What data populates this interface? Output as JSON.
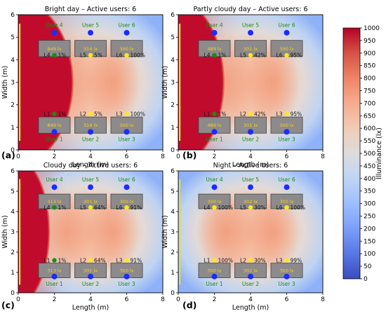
{
  "chart_data": {
    "type": "heatmap",
    "xlabel": "Length (m)",
    "ylabel": "Width (m)",
    "xlim": [
      0,
      8
    ],
    "ylim": [
      0,
      6
    ],
    "xticks": [
      0,
      2,
      4,
      6,
      8
    ],
    "yticks": [
      0,
      1,
      2,
      3,
      4,
      5,
      6
    ],
    "colorbar": {
      "label": "Illuminance (lx)",
      "range": [
        0,
        1000
      ],
      "ticks": [
        0,
        50,
        100,
        150,
        200,
        250,
        300,
        350,
        400,
        450,
        500,
        550,
        600,
        650,
        700,
        750,
        800,
        850,
        900,
        950,
        1000
      ],
      "colors": [
        "#3b4cc0",
        "#5977e3",
        "#7b9ff9",
        "#9ebeff",
        "#c0d4f5",
        "#dddcdc",
        "#f2cbb7",
        "#f7ac8e",
        "#ee8468",
        "#d65244",
        "#b40426"
      ]
    },
    "user_positions_m": [
      {
        "label": "User 1",
        "x": 2,
        "y": 0.8
      },
      {
        "label": "User 2",
        "x": 4,
        "y": 0.8
      },
      {
        "label": "User 3",
        "x": 6,
        "y": 0.8
      },
      {
        "label": "User 4",
        "x": 2,
        "y": 5.2
      },
      {
        "label": "User 5",
        "x": 4,
        "y": 5.2
      },
      {
        "label": "User 6",
        "x": 6,
        "y": 5.2
      }
    ],
    "panels": [
      {
        "tag": "(a)",
        "title": "Bright day – Active users: 6",
        "window_red_extent_m": 3.0,
        "luminaires": [
          {
            "label": "L1",
            "dim": "1%",
            "x": 2,
            "y": 1.6,
            "color": "#1a8a1a"
          },
          {
            "label": "L2",
            "dim": "5%",
            "x": 4,
            "y": 1.6,
            "color": "#ffe61a"
          },
          {
            "label": "L3",
            "dim": "100%",
            "x": 6,
            "y": 1.6,
            "color": "#ffe61a"
          },
          {
            "label": "L4",
            "dim": "1%",
            "x": 2,
            "y": 4.2,
            "color": "#1a8a1a"
          },
          {
            "label": "L5",
            "dim": "5%",
            "x": 4,
            "y": 4.2,
            "color": "#ffe61a"
          },
          {
            "label": "L6",
            "dim": "100%",
            "x": 6,
            "y": 4.2,
            "color": "#ffe61a"
          }
        ],
        "desks": [
          {
            "lux": "849 lx",
            "x": 2,
            "y": 1.1
          },
          {
            "lux": "314 lx",
            "x": 4,
            "y": 1.1
          },
          {
            "lux": "300 lx",
            "x": 6,
            "y": 1.1
          },
          {
            "lux": "849 lx",
            "x": 2,
            "y": 4.5
          },
          {
            "lux": "314 lx",
            "x": 4,
            "y": 4.5
          },
          {
            "lux": "300 lx",
            "x": 6,
            "y": 4.5
          }
        ]
      },
      {
        "tag": "(b)",
        "title": "Partly cloudy day – Active users: 6",
        "window_red_extent_m": 2.5,
        "luminaires": [
          {
            "label": "L1",
            "dim": "1%",
            "x": 2,
            "y": 1.6,
            "color": "#1a8a1a"
          },
          {
            "label": "L2",
            "dim": "42%",
            "x": 4,
            "y": 1.6,
            "color": "#ffe61a"
          },
          {
            "label": "L3",
            "dim": "95%",
            "x": 6,
            "y": 1.6,
            "color": "#ffe61a"
          },
          {
            "label": "L4",
            "dim": "1%",
            "x": 2,
            "y": 4.2,
            "color": "#1a8a1a"
          },
          {
            "label": "L5",
            "dim": "42%",
            "x": 4,
            "y": 4.2,
            "color": "#ffe61a"
          },
          {
            "label": "L6",
            "dim": "95%",
            "x": 6,
            "y": 4.2,
            "color": "#ffe61a"
          }
        ],
        "desks": [
          {
            "lux": "489 lx",
            "x": 2,
            "y": 1.1
          },
          {
            "lux": "301 lx",
            "x": 4,
            "y": 1.1
          },
          {
            "lux": "300 lx",
            "x": 6,
            "y": 1.1
          },
          {
            "lux": "489 lx",
            "x": 2,
            "y": 4.5
          },
          {
            "lux": "301 lx",
            "x": 4,
            "y": 4.5
          },
          {
            "lux": "300 lx",
            "x": 6,
            "y": 4.5
          }
        ]
      },
      {
        "tag": "(c)",
        "title": "Cloudy day – Active users: 6",
        "window_red_extent_m": 1.7,
        "luminaires": [
          {
            "label": "L1",
            "dim": "1%",
            "x": 2,
            "y": 1.6,
            "color": "#1a8a1a"
          },
          {
            "label": "L2",
            "dim": "64%",
            "x": 4,
            "y": 1.6,
            "color": "#ffe61a"
          },
          {
            "label": "L3",
            "dim": "91%",
            "x": 6,
            "y": 1.6,
            "color": "#ffe61a"
          },
          {
            "label": "L4",
            "dim": "1%",
            "x": 2,
            "y": 4.2,
            "color": "#1a8a1a"
          },
          {
            "label": "L5",
            "dim": "64%",
            "x": 4,
            "y": 4.2,
            "color": "#ffe61a"
          },
          {
            "label": "L6",
            "dim": "91%",
            "x": 6,
            "y": 4.2,
            "color": "#ffe61a"
          }
        ],
        "desks": [
          {
            "lux": "313 lx",
            "x": 2,
            "y": 1.1
          },
          {
            "lux": "301 lx",
            "x": 4,
            "y": 1.1
          },
          {
            "lux": "300 lx",
            "x": 6,
            "y": 1.1
          },
          {
            "lux": "313 lx",
            "x": 2,
            "y": 4.5
          },
          {
            "lux": "301 lx",
            "x": 4,
            "y": 4.5
          },
          {
            "lux": "300 lx",
            "x": 6,
            "y": 4.5
          }
        ]
      },
      {
        "tag": "(d)",
        "title": "Night – Active users: 6",
        "window_red_extent_m": 0,
        "luminaires": [
          {
            "label": "L1",
            "dim": "100%",
            "x": 2,
            "y": 1.6,
            "color": "#ffe61a"
          },
          {
            "label": "L2",
            "dim": "30%",
            "x": 4,
            "y": 1.6,
            "color": "#ffe61a"
          },
          {
            "label": "L3",
            "dim": "99%",
            "x": 6,
            "y": 1.6,
            "color": "#ffe61a"
          },
          {
            "label": "L4",
            "dim": "100%",
            "x": 2,
            "y": 4.2,
            "color": "#ffe61a"
          },
          {
            "label": "L5",
            "dim": "30%",
            "x": 4,
            "y": 4.2,
            "color": "#ffe61a"
          },
          {
            "label": "L6",
            "dim": "100%",
            "x": 6,
            "y": 4.2,
            "color": "#ffe61a"
          }
        ],
        "desks": [
          {
            "lux": "300 lx",
            "x": 2,
            "y": 1.1
          },
          {
            "lux": "302 lx",
            "x": 4,
            "y": 1.1
          },
          {
            "lux": "300 lx",
            "x": 6,
            "y": 1.1
          },
          {
            "lux": "300 lx",
            "x": 2,
            "y": 4.5
          },
          {
            "lux": "302 lx",
            "x": 4,
            "y": 4.5
          },
          {
            "lux": "300 lx",
            "x": 6,
            "y": 4.5
          }
        ]
      }
    ]
  }
}
